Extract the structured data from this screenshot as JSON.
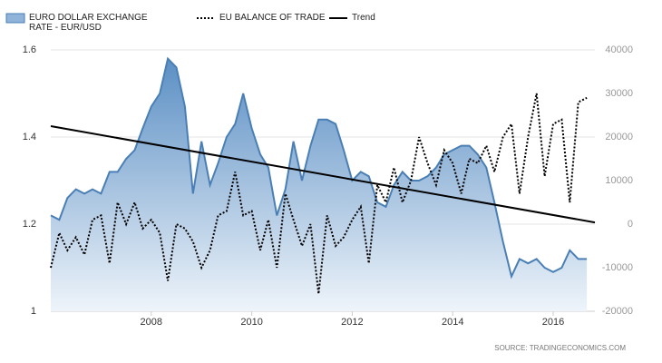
{
  "chart_data": {
    "type": "line",
    "x": [
      2006,
      2006.17,
      2006.33,
      2006.5,
      2006.67,
      2006.83,
      2007,
      2007.17,
      2007.33,
      2007.5,
      2007.67,
      2007.83,
      2008,
      2008.17,
      2008.33,
      2008.5,
      2008.67,
      2008.83,
      2009,
      2009.17,
      2009.33,
      2009.5,
      2009.67,
      2009.83,
      2010,
      2010.17,
      2010.33,
      2010.5,
      2010.67,
      2010.83,
      2011,
      2011.17,
      2011.33,
      2011.5,
      2011.67,
      2011.83,
      2012,
      2012.17,
      2012.33,
      2012.5,
      2012.67,
      2012.83,
      2013,
      2013.17,
      2013.33,
      2013.5,
      2013.67,
      2013.83,
      2014,
      2014.17,
      2014.33,
      2014.5,
      2014.67,
      2014.83,
      2015,
      2015.17,
      2015.33,
      2015.5,
      2015.67,
      2015.83,
      2016,
      2016.17,
      2016.33,
      2016.5,
      2016.67
    ],
    "series": [
      {
        "name": "EURO DOLLAR EXCHANGE RATE - EUR/USD",
        "color": "#4a7fb5",
        "style": "area",
        "values": [
          1.22,
          1.21,
          1.26,
          1.28,
          1.27,
          1.28,
          1.27,
          1.32,
          1.32,
          1.35,
          1.37,
          1.42,
          1.47,
          1.5,
          1.58,
          1.56,
          1.47,
          1.27,
          1.39,
          1.29,
          1.34,
          1.4,
          1.43,
          1.5,
          1.42,
          1.36,
          1.33,
          1.22,
          1.28,
          1.39,
          1.3,
          1.38,
          1.44,
          1.44,
          1.43,
          1.37,
          1.3,
          1.32,
          1.31,
          1.25,
          1.24,
          1.29,
          1.32,
          1.3,
          1.3,
          1.31,
          1.33,
          1.36,
          1.37,
          1.38,
          1.38,
          1.36,
          1.33,
          1.25,
          1.16,
          1.08,
          1.12,
          1.11,
          1.12,
          1.1,
          1.09,
          1.1,
          1.14,
          1.12,
          1.12
        ]
      },
      {
        "name": "EU BALANCE OF TRADE",
        "color": "#000000",
        "style": "dotted",
        "axis": "y2",
        "values": [
          -10000,
          -2000,
          -6000,
          -3000,
          -7000,
          1000,
          2000,
          -9000,
          5000,
          0,
          5000,
          -1000,
          1000,
          -2000,
          -13000,
          0,
          -1000,
          -4000,
          -10000,
          -6000,
          2000,
          3000,
          12000,
          2000,
          3000,
          -6000,
          1000,
          -10000,
          7000,
          1000,
          -5000,
          0,
          -16000,
          2000,
          -5000,
          -3000,
          1000,
          4000,
          -9000,
          9000,
          5000,
          13000,
          5000,
          10000,
          20000,
          14000,
          9000,
          17000,
          14000,
          7000,
          15000,
          14000,
          18000,
          12000,
          20000,
          23000,
          7000,
          20000,
          30000,
          11000,
          23000,
          24000,
          5000,
          28000,
          29000
        ]
      },
      {
        "name": "Trend",
        "color": "#000000",
        "style": "solid",
        "x": [
          2006,
          2016.83
        ],
        "values": [
          1.425,
          1.204
        ]
      }
    ],
    "xlim": [
      2006,
      2016.83
    ],
    "xticks": [
      2008,
      2010,
      2012,
      2014,
      2016
    ],
    "ylim": [
      1,
      1.6
    ],
    "yticks": [
      1,
      1.2,
      1.4,
      1.6
    ],
    "y2lim": [
      -20000,
      40000
    ],
    "y2ticks": [
      -20000,
      -10000,
      0,
      10000,
      20000,
      30000,
      40000
    ],
    "grid": true,
    "source": "SOURCE: TRADINGECONOMICS.COM"
  }
}
